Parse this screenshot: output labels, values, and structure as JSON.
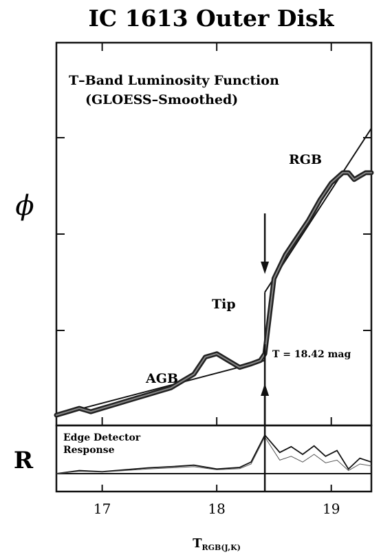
{
  "chart_data": {
    "type": "line",
    "title": "IC 1613 Outer Disk",
    "annotation_lines": [
      "T–Band Luminosity Function",
      "(GLOESS–Smoothed)"
    ],
    "ylabel_top": "ϕ",
    "ylabel_bottom": "R",
    "xlabel": "T",
    "xlabel_sub": "RGB",
    "xlabel_sub_visible": "(J,K)",
    "xlim": [
      16.6,
      19.35
    ],
    "x_ticks": [
      17,
      18,
      19
    ],
    "x_tick_labels": [
      "17",
      "18",
      "19"
    ],
    "labels": {
      "agb": "AGB",
      "rgb": "RGB",
      "tip": "Tip",
      "tip_value": "T = 18.42 mag",
      "edge_detector_line1": "Edge Detector",
      "edge_detector_line2": "Response"
    },
    "tip_mag": 18.42,
    "luminosity_function": {
      "ylim": [
        0,
        1
      ],
      "x": [
        16.6,
        16.7,
        16.8,
        16.9,
        17.0,
        17.1,
        17.2,
        17.3,
        17.4,
        17.5,
        17.6,
        17.7,
        17.8,
        17.9,
        18.0,
        18.1,
        18.2,
        18.3,
        18.38,
        18.42,
        18.5,
        18.6,
        18.7,
        18.8,
        18.9,
        19.0,
        19.1,
        19.15,
        19.2,
        19.25,
        19.3,
        19.35
      ],
      "y": [
        0.01,
        0.02,
        0.03,
        0.02,
        0.03,
        0.04,
        0.05,
        0.06,
        0.07,
        0.08,
        0.09,
        0.11,
        0.13,
        0.18,
        0.19,
        0.17,
        0.15,
        0.16,
        0.17,
        0.19,
        0.41,
        0.48,
        0.53,
        0.58,
        0.64,
        0.69,
        0.72,
        0.72,
        0.7,
        0.71,
        0.72,
        0.72
      ]
    },
    "fit_lines": {
      "agb": {
        "x": [
          16.6,
          18.42
        ],
        "y": [
          0.01,
          0.17
        ]
      },
      "rgb": {
        "x": [
          18.42,
          19.35
        ],
        "y": [
          0.37,
          0.85
        ]
      }
    },
    "edge_response": {
      "series": [
        {
          "name": "",
          "x": [
            16.6,
            16.8,
            17.0,
            17.2,
            17.4,
            17.6,
            17.8,
            18.0,
            18.2,
            18.3,
            18.42,
            18.55,
            18.65,
            18.75,
            18.85,
            18.95,
            19.05,
            19.15,
            19.25,
            19.35
          ],
          "y": [
            0.0,
            0.08,
            0.05,
            0.1,
            0.15,
            0.18,
            0.22,
            0.12,
            0.16,
            0.3,
            1.0,
            0.55,
            0.7,
            0.5,
            0.72,
            0.45,
            0.6,
            0.12,
            0.4,
            0.3
          ]
        },
        {
          "name": "",
          "x": [
            16.6,
            16.8,
            17.0,
            17.2,
            17.4,
            17.6,
            17.8,
            18.0,
            18.2,
            18.3,
            18.42,
            18.55,
            18.65,
            18.75,
            18.85,
            18.95,
            19.05,
            19.15,
            19.25,
            19.35
          ],
          "y": [
            0.0,
            0.06,
            0.04,
            0.08,
            0.12,
            0.15,
            0.18,
            0.1,
            0.13,
            0.25,
            0.95,
            0.35,
            0.45,
            0.3,
            0.5,
            0.28,
            0.35,
            0.08,
            0.25,
            0.2
          ]
        }
      ]
    }
  }
}
